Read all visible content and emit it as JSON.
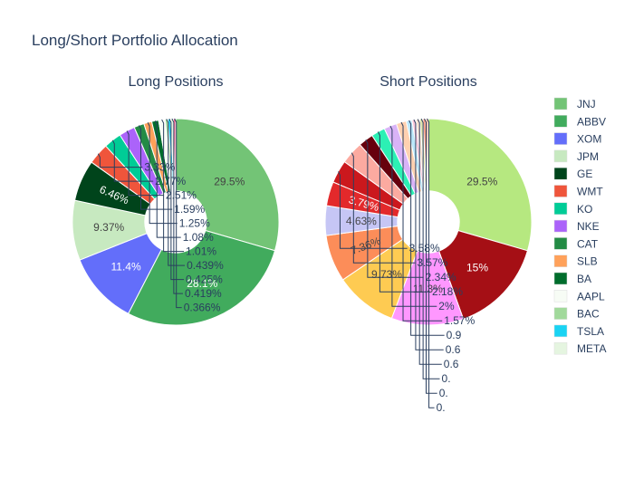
{
  "title": "Long/Short Portfolio Allocation",
  "legend": {
    "position": "right",
    "entries": [
      {
        "label": "JNJ",
        "color": "#73c476"
      },
      {
        "label": "ABBV",
        "color": "#41ab5d"
      },
      {
        "label": "XOM",
        "color": "#636efa"
      },
      {
        "label": "JPM",
        "color": "#c7e9c0"
      },
      {
        "label": "GE",
        "color": "#00441b"
      },
      {
        "label": "WMT",
        "color": "#ef553b"
      },
      {
        "label": "KO",
        "color": "#00cc96"
      },
      {
        "label": "NKE",
        "color": "#ab63fa"
      },
      {
        "label": "CAT",
        "color": "#238b45"
      },
      {
        "label": "SLB",
        "color": "#ffa15a"
      },
      {
        "label": "BA",
        "color": "#006d2c"
      },
      {
        "label": "AAPL",
        "color": "#f7fcf5"
      },
      {
        "label": "BAC",
        "color": "#a1d99b"
      },
      {
        "label": "TSLA",
        "color": "#19d3f3"
      },
      {
        "label": "META",
        "color": "#e5f5e0"
      }
    ]
  },
  "chart_data": [
    {
      "type": "pie",
      "title": "Long Positions",
      "hole": 0.3,
      "slices": [
        {
          "label": "JNJ",
          "value": 29.5,
          "text": "29.5%",
          "color": "#73c476",
          "label_pos": "inside"
        },
        {
          "label": "ABBV",
          "value": 28.1,
          "text": "28.1%",
          "color": "#41ab5d",
          "label_pos": "inside"
        },
        {
          "label": "XOM",
          "value": 11.4,
          "text": "11.4%",
          "color": "#636efa",
          "label_pos": "inside"
        },
        {
          "label": "JPM",
          "value": 9.37,
          "text": "9.37%",
          "color": "#c7e9c0",
          "label_pos": "inside"
        },
        {
          "label": "GE",
          "value": 6.46,
          "text": "6.46%",
          "color": "#00441b",
          "label_pos": "inside-radial"
        },
        {
          "label": "WMT",
          "value": 3.33,
          "text": "3.33%",
          "color": "#ef553b",
          "label_pos": "outside"
        },
        {
          "label": "KO",
          "value": 2.77,
          "text": "2.77%",
          "color": "#00cc96",
          "label_pos": "outside"
        },
        {
          "label": "NKE",
          "value": 2.51,
          "text": "2.51%",
          "color": "#ab63fa",
          "label_pos": "outside"
        },
        {
          "label": "CAT",
          "value": 1.59,
          "text": "1.59%",
          "color": "#238b45",
          "label_pos": "outside"
        },
        {
          "label": "SLB",
          "value": 1.25,
          "text": "1.25%",
          "color": "#ffa15a",
          "label_pos": "outside"
        },
        {
          "label": "BA",
          "value": 1.08,
          "text": "1.08%",
          "color": "#006d2c",
          "label_pos": "outside"
        },
        {
          "label": "AAPL",
          "value": 1.01,
          "text": "1.01%",
          "color": "#f7fcf5",
          "label_pos": "outside"
        },
        {
          "label": "BAC",
          "value": 0.439,
          "text": "0.439%",
          "color": "#a1d99b",
          "label_pos": "outside"
        },
        {
          "label": "TSLA",
          "value": 0.425,
          "text": "0.425%",
          "color": "#19d3f3",
          "label_pos": "outside"
        },
        {
          "label": "META",
          "value": 0.419,
          "text": "0.419%",
          "color": "#e5f5e0",
          "label_pos": "outside"
        },
        {
          "label": "",
          "value": 0.366,
          "text": "0.366%",
          "color": "#ff6692",
          "label_pos": "outside"
        }
      ]
    },
    {
      "type": "pie",
      "title": "Short Positions",
      "hole": 0.3,
      "slices": [
        {
          "label": "",
          "value": 29.5,
          "text": "29.5%",
          "color": "#b6e880",
          "label_pos": "inside"
        },
        {
          "label": "",
          "value": 15,
          "text": "15%",
          "color": "#a50f15",
          "label_pos": "inside"
        },
        {
          "label": "",
          "value": 11.3,
          "text": "11.3%",
          "color": "#ff97ff",
          "label_pos": "inside"
        },
        {
          "label": "",
          "value": 9.73,
          "text": "9.73%",
          "color": "#fecb52",
          "label_pos": "inside"
        },
        {
          "label": "",
          "value": 7.36,
          "text": "7.36%",
          "color": "#fc8d59",
          "label_pos": "inside-radial"
        },
        {
          "label": "",
          "value": 4.63,
          "text": "4.63%",
          "color": "#c6c6f5",
          "label_pos": "inside-radial"
        },
        {
          "label": "",
          "value": 3.79,
          "text": "3.79%",
          "color": "#e3292b",
          "label_pos": "inside-radial"
        },
        {
          "label": "",
          "value": 3.58,
          "text": "3.58%",
          "color": "#cb181d",
          "label_pos": "outside"
        },
        {
          "label": "",
          "value": 3.57,
          "text": "3.57%",
          "color": "#fcaaa0",
          "label_pos": "outside"
        },
        {
          "label": "",
          "value": 2.34,
          "text": "2.34%",
          "color": "#67000d",
          "label_pos": "outside"
        },
        {
          "label": "",
          "value": 2.18,
          "text": "2.18%",
          "color": "#2cf0b4",
          "label_pos": "outside"
        },
        {
          "label": "",
          "value": 2,
          "text": "2%",
          "color": "#d9b3f7",
          "label_pos": "outside"
        },
        {
          "label": "",
          "value": 1.57,
          "text": "1.57%",
          "color": "#ffd1b0",
          "label_pos": "outside"
        },
        {
          "label": "",
          "value": 0.9,
          "text": "0.9",
          "color": "#bbe7f9",
          "label_pos": "outside"
        },
        {
          "label": "",
          "value": 0.6,
          "text": "0.6",
          "color": "#ffc9dc",
          "label_pos": "outside"
        },
        {
          "label": "",
          "value": 0.6,
          "text": "0.6",
          "color": "#fde2cf",
          "label_pos": "outside"
        },
        {
          "label": "",
          "value": 0.5,
          "text": "0.",
          "color": "#dde3a8",
          "label_pos": "outside"
        },
        {
          "label": "",
          "value": 0.45,
          "text": "0.",
          "color": "#fb9a83",
          "label_pos": "outside"
        },
        {
          "label": "",
          "value": 0.4,
          "text": "0.",
          "color": "#fcbba1",
          "label_pos": "outside"
        }
      ]
    }
  ]
}
